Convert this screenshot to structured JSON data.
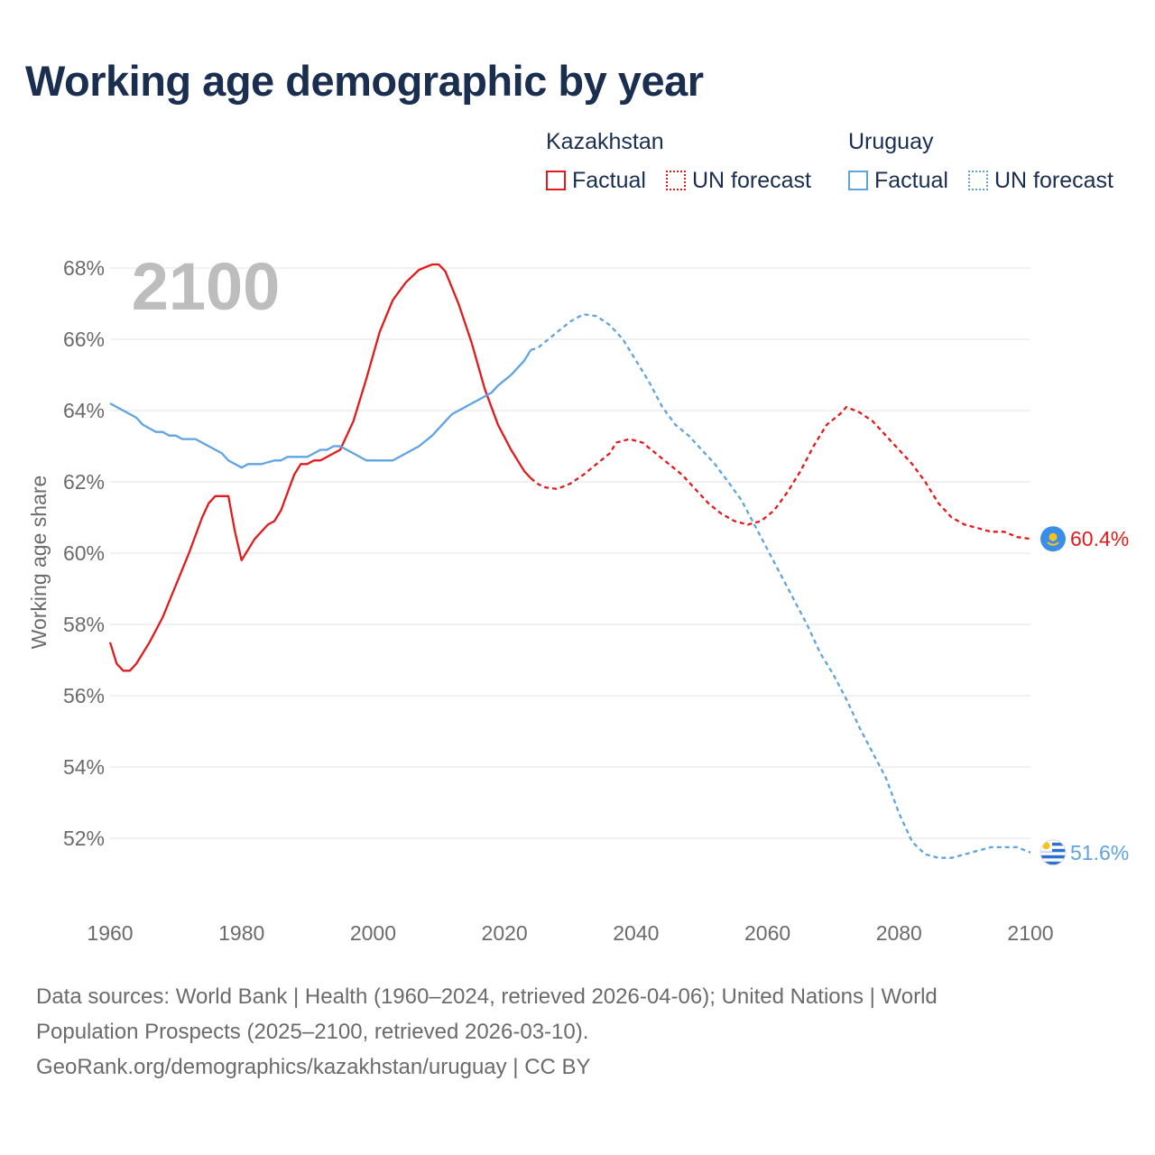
{
  "title": "Working age demographic by year",
  "legend": {
    "kazakhstan": {
      "name": "Kazakhstan",
      "factual": "Factual",
      "forecast": "UN forecast",
      "color": "#e31a1c"
    },
    "uruguay": {
      "name": "Uruguay",
      "factual": "Factual",
      "forecast": "UN forecast",
      "color": "#5fa4e0"
    }
  },
  "sources": {
    "line1": "Data sources: World Bank | Health (1960–2024, retrieved 2026-04-06); United Nations | World",
    "line2": "Population Prospects (2025–2100, retrieved 2026-03-10).",
    "line3": "GeoRank.org/demographics/kazakhstan/uruguay | CC BY"
  },
  "chart_data": {
    "type": "line",
    "title": "Working age demographic by year",
    "year_watermark": "2100",
    "ylabel": "Working age share",
    "xlabel": "",
    "xlim": [
      1960,
      2100
    ],
    "ylim": [
      50.5,
      68.5
    ],
    "grid": true,
    "x_ticks": [
      1960,
      1980,
      2000,
      2020,
      2040,
      2060,
      2080,
      2100
    ],
    "x_tick_labels": [
      "1960",
      "1980",
      "2000",
      "2020",
      "2040",
      "2060",
      "2080",
      "2100"
    ],
    "y_ticks": [
      52,
      54,
      56,
      58,
      60,
      62,
      64,
      66,
      68
    ],
    "y_tick_labels": [
      "52%",
      "54%",
      "56%",
      "58%",
      "60%",
      "62%",
      "64%",
      "66%",
      "68%"
    ],
    "legend_position": "top-right",
    "forecast_start_year": 2024,
    "series": [
      {
        "name": "Kazakhstan",
        "color": "#e31a1c",
        "end_label": "60.4%",
        "points": [
          [
            1960,
            57.5
          ],
          [
            1961,
            56.9
          ],
          [
            1962,
            56.7
          ],
          [
            1963,
            56.7
          ],
          [
            1964,
            56.9
          ],
          [
            1966,
            57.5
          ],
          [
            1968,
            58.2
          ],
          [
            1970,
            59.1
          ],
          [
            1972,
            60.0
          ],
          [
            1974,
            61.0
          ],
          [
            1975,
            61.4
          ],
          [
            1976,
            61.6
          ],
          [
            1978,
            61.6
          ],
          [
            1979,
            60.6
          ],
          [
            1980,
            59.8
          ],
          [
            1982,
            60.4
          ],
          [
            1984,
            60.8
          ],
          [
            1985,
            60.9
          ],
          [
            1986,
            61.2
          ],
          [
            1988,
            62.2
          ],
          [
            1989,
            62.5
          ],
          [
            1990,
            62.5
          ],
          [
            1991,
            62.6
          ],
          [
            1992,
            62.6
          ],
          [
            1994,
            62.8
          ],
          [
            1995,
            62.9
          ],
          [
            1997,
            63.7
          ],
          [
            1999,
            64.9
          ],
          [
            2001,
            66.2
          ],
          [
            2003,
            67.1
          ],
          [
            2005,
            67.6
          ],
          [
            2007,
            67.95
          ],
          [
            2009,
            68.1
          ],
          [
            2010,
            68.1
          ],
          [
            2011,
            67.9
          ],
          [
            2013,
            67.0
          ],
          [
            2015,
            65.9
          ],
          [
            2017,
            64.6
          ],
          [
            2019,
            63.6
          ],
          [
            2021,
            62.9
          ],
          [
            2022,
            62.6
          ],
          [
            2023,
            62.3
          ],
          [
            2024,
            62.1
          ],
          [
            2025,
            61.95
          ],
          [
            2026,
            61.85
          ],
          [
            2028,
            61.8
          ],
          [
            2030,
            61.95
          ],
          [
            2032,
            62.2
          ],
          [
            2034,
            62.5
          ],
          [
            2036,
            62.8
          ],
          [
            2037,
            63.1
          ],
          [
            2039,
            63.2
          ],
          [
            2041,
            63.1
          ],
          [
            2043,
            62.8
          ],
          [
            2045,
            62.5
          ],
          [
            2047,
            62.2
          ],
          [
            2049,
            61.8
          ],
          [
            2051,
            61.4
          ],
          [
            2053,
            61.1
          ],
          [
            2055,
            60.9
          ],
          [
            2057,
            60.8
          ],
          [
            2059,
            60.9
          ],
          [
            2061,
            61.2
          ],
          [
            2063,
            61.7
          ],
          [
            2065,
            62.3
          ],
          [
            2067,
            63.0
          ],
          [
            2069,
            63.6
          ],
          [
            2071,
            63.9
          ],
          [
            2072,
            64.1
          ],
          [
            2074,
            63.95
          ],
          [
            2076,
            63.7
          ],
          [
            2078,
            63.3
          ],
          [
            2080,
            62.9
          ],
          [
            2082,
            62.5
          ],
          [
            2084,
            62.0
          ],
          [
            2086,
            61.4
          ],
          [
            2088,
            61.0
          ],
          [
            2090,
            60.8
          ],
          [
            2092,
            60.7
          ],
          [
            2094,
            60.6
          ],
          [
            2096,
            60.6
          ],
          [
            2098,
            60.45
          ],
          [
            2100,
            60.4
          ]
        ]
      },
      {
        "name": "Uruguay",
        "color": "#5fa4e0",
        "end_label": "51.6%",
        "points": [
          [
            1960,
            64.2
          ],
          [
            1962,
            64.0
          ],
          [
            1964,
            63.8
          ],
          [
            1965,
            63.6
          ],
          [
            1967,
            63.4
          ],
          [
            1968,
            63.4
          ],
          [
            1969,
            63.3
          ],
          [
            1970,
            63.3
          ],
          [
            1971,
            63.2
          ],
          [
            1973,
            63.2
          ],
          [
            1975,
            63.0
          ],
          [
            1977,
            62.8
          ],
          [
            1978,
            62.6
          ],
          [
            1979,
            62.5
          ],
          [
            1980,
            62.4
          ],
          [
            1981,
            62.5
          ],
          [
            1983,
            62.5
          ],
          [
            1985,
            62.6
          ],
          [
            1986,
            62.6
          ],
          [
            1987,
            62.7
          ],
          [
            1990,
            62.7
          ],
          [
            1991,
            62.8
          ],
          [
            1992,
            62.9
          ],
          [
            1993,
            62.9
          ],
          [
            1994,
            63.0
          ],
          [
            1995,
            63.0
          ],
          [
            1997,
            62.8
          ],
          [
            1999,
            62.6
          ],
          [
            2003,
            62.6
          ],
          [
            2005,
            62.8
          ],
          [
            2007,
            63.0
          ],
          [
            2009,
            63.3
          ],
          [
            2011,
            63.7
          ],
          [
            2012,
            63.9
          ],
          [
            2014,
            64.1
          ],
          [
            2016,
            64.3
          ],
          [
            2018,
            64.5
          ],
          [
            2019,
            64.7
          ],
          [
            2021,
            65.0
          ],
          [
            2023,
            65.4
          ],
          [
            2024,
            65.7
          ],
          [
            2025,
            65.75
          ],
          [
            2026,
            65.9
          ],
          [
            2028,
            66.2
          ],
          [
            2030,
            66.5
          ],
          [
            2032,
            66.7
          ],
          [
            2034,
            66.65
          ],
          [
            2036,
            66.4
          ],
          [
            2038,
            66.0
          ],
          [
            2040,
            65.4
          ],
          [
            2042,
            64.8
          ],
          [
            2044,
            64.1
          ],
          [
            2046,
            63.6
          ],
          [
            2048,
            63.3
          ],
          [
            2050,
            62.9
          ],
          [
            2052,
            62.5
          ],
          [
            2054,
            62.0
          ],
          [
            2056,
            61.5
          ],
          [
            2058,
            60.8
          ],
          [
            2060,
            60.1
          ],
          [
            2062,
            59.4
          ],
          [
            2064,
            58.7
          ],
          [
            2066,
            58.0
          ],
          [
            2068,
            57.2
          ],
          [
            2070,
            56.6
          ],
          [
            2072,
            55.9
          ],
          [
            2074,
            55.1
          ],
          [
            2076,
            54.4
          ],
          [
            2078,
            53.7
          ],
          [
            2080,
            52.7
          ],
          [
            2082,
            51.9
          ],
          [
            2084,
            51.55
          ],
          [
            2086,
            51.45
          ],
          [
            2088,
            51.45
          ],
          [
            2090,
            51.55
          ],
          [
            2092,
            51.65
          ],
          [
            2094,
            51.75
          ],
          [
            2096,
            51.75
          ],
          [
            2098,
            51.75
          ],
          [
            2100,
            51.6
          ]
        ]
      }
    ]
  }
}
